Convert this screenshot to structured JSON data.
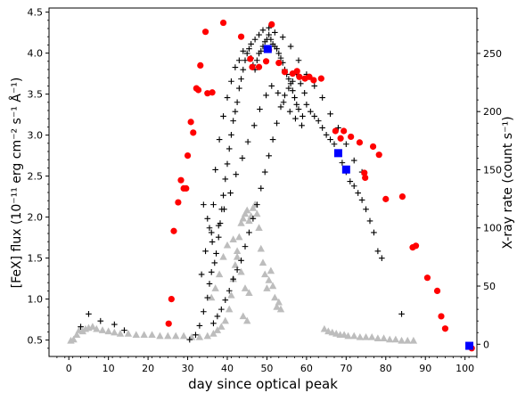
{
  "chart_data": {
    "type": "scatter",
    "title": "",
    "xlabel": "day since optical peak",
    "ylabel_left": "[FeX] flux (10⁻¹¹ erg cm⁻² s⁻¹ Å⁻¹)",
    "ylabel_right": "X-ray rate (count s⁻¹)",
    "xlim": [
      -5,
      103
    ],
    "ylim_left": [
      0.3,
      4.55
    ],
    "ylim_right": [
      -10.5,
      289
    ],
    "xticks": [
      0,
      10,
      20,
      30,
      40,
      50,
      60,
      70,
      80,
      90,
      100
    ],
    "yticks_left": [
      0.5,
      1.0,
      1.5,
      2.0,
      2.5,
      3.0,
      3.5,
      4.0,
      4.5
    ],
    "yticks_right": [
      0,
      50,
      100,
      150,
      200,
      250
    ],
    "colors": {
      "red_circles": "#ff0000",
      "blue_squares": "#0000ff",
      "gray_triangles": "#bdbdbd",
      "black_plus": "#000000"
    },
    "series": [
      {
        "marker": "circle",
        "axis": "left",
        "points": [
          [
            25.2,
            0.7
          ],
          [
            25.9,
            1.0
          ],
          [
            26.5,
            1.83
          ],
          [
            27.6,
            2.18
          ],
          [
            28.3,
            2.45
          ],
          [
            29.0,
            2.35
          ],
          [
            29.6,
            2.35
          ],
          [
            30.0,
            2.75
          ],
          [
            30.8,
            3.16
          ],
          [
            31.4,
            3.03
          ],
          [
            32.2,
            3.57
          ],
          [
            32.7,
            3.55
          ],
          [
            33.2,
            3.85
          ],
          [
            34.5,
            4.26
          ],
          [
            35.0,
            3.51
          ],
          [
            36.2,
            3.52
          ],
          [
            39.0,
            4.37
          ],
          [
            43.5,
            4.2
          ],
          [
            45.8,
            3.93
          ],
          [
            46.3,
            3.83
          ],
          [
            48.0,
            3.83
          ],
          [
            49.8,
            3.9
          ],
          [
            50.5,
            4.04
          ],
          [
            51.2,
            4.35
          ],
          [
            53.0,
            3.88
          ],
          [
            54.5,
            3.77
          ],
          [
            56.5,
            3.75
          ],
          [
            57.6,
            3.78
          ],
          [
            58.2,
            3.71
          ],
          [
            59.6,
            3.69
          ],
          [
            60.7,
            3.71
          ],
          [
            61.8,
            3.67
          ],
          [
            63.7,
            3.69
          ],
          [
            67.3,
            3.05
          ],
          [
            68.6,
            2.96
          ],
          [
            69.4,
            3.05
          ],
          [
            71.2,
            2.98
          ],
          [
            73.4,
            2.91
          ],
          [
            74.6,
            2.54
          ],
          [
            74.8,
            2.48
          ],
          [
            76.8,
            2.86
          ],
          [
            78.3,
            2.76
          ],
          [
            80.0,
            2.22
          ],
          [
            84.2,
            2.25
          ],
          [
            86.8,
            1.63
          ],
          [
            87.6,
            1.65
          ],
          [
            90.5,
            1.26
          ],
          [
            93.0,
            1.1
          ],
          [
            94.0,
            0.79
          ],
          [
            95.0,
            0.64
          ],
          [
            101.7,
            0.4
          ]
        ]
      },
      {
        "marker": "square",
        "axis": "left",
        "points": [
          [
            50.2,
            4.05
          ],
          [
            68.0,
            2.78
          ],
          [
            70.0,
            2.58
          ],
          [
            101.1,
            0.43
          ]
        ]
      },
      {
        "marker": "triangle",
        "axis": "right",
        "points": [
          [
            0.5,
            3
          ],
          [
            1.2,
            4
          ],
          [
            2.0,
            8
          ],
          [
            2.6,
            12
          ],
          [
            3.5,
            11
          ],
          [
            4.2,
            13
          ],
          [
            5.0,
            14
          ],
          [
            6.0,
            15
          ],
          [
            7.0,
            13
          ],
          [
            8.5,
            12
          ],
          [
            10.0,
            11
          ],
          [
            11.5,
            10
          ],
          [
            13.0,
            9
          ],
          [
            15.0,
            9
          ],
          [
            17.0,
            8
          ],
          [
            19.0,
            8
          ],
          [
            21.0,
            8
          ],
          [
            23.0,
            7
          ],
          [
            25.0,
            7
          ],
          [
            27.0,
            7
          ],
          [
            29.0,
            7
          ],
          [
            31.0,
            6
          ],
          [
            33.0,
            6
          ],
          [
            35.0,
            7
          ],
          [
            36.5,
            9
          ],
          [
            37.5,
            12
          ],
          [
            38.5,
            15
          ],
          [
            39.5,
            20
          ],
          [
            40.5,
            30
          ],
          [
            41.0,
            42
          ],
          [
            41.5,
            56
          ],
          [
            42.0,
            68
          ],
          [
            42.5,
            80
          ],
          [
            43.0,
            92
          ],
          [
            43.5,
            104
          ],
          [
            44.0,
            108
          ],
          [
            44.5,
            112
          ],
          [
            45.0,
            115
          ],
          [
            45.5,
            106
          ],
          [
            46.0,
            110
          ],
          [
            46.5,
            117
          ],
          [
            47.0,
            120
          ],
          [
            47.5,
            112
          ],
          [
            48.0,
            100
          ],
          [
            48.5,
            82
          ],
          [
            49.0,
            70
          ],
          [
            49.5,
            60
          ],
          [
            50.0,
            48
          ],
          [
            50.5,
            55
          ],
          [
            51.0,
            63
          ],
          [
            51.5,
            50
          ],
          [
            52.0,
            40
          ],
          [
            52.5,
            32
          ],
          [
            53.0,
            36
          ],
          [
            53.5,
            30
          ],
          [
            38.0,
            60
          ],
          [
            39.0,
            75
          ],
          [
            40.0,
            85
          ],
          [
            41.5,
            90
          ],
          [
            42.5,
            75
          ],
          [
            43.5,
            62
          ],
          [
            44.5,
            48
          ],
          [
            45.5,
            44
          ],
          [
            44.0,
            24
          ],
          [
            45.0,
            20
          ],
          [
            36.0,
            40
          ],
          [
            37.0,
            48
          ],
          [
            64.5,
            13
          ],
          [
            65.5,
            11
          ],
          [
            66.5,
            10
          ],
          [
            67.5,
            9
          ],
          [
            68.5,
            8
          ],
          [
            69.5,
            8
          ],
          [
            70.5,
            7
          ],
          [
            72.0,
            7
          ],
          [
            73.5,
            6
          ],
          [
            75.0,
            6
          ],
          [
            76.5,
            6
          ],
          [
            78.0,
            5
          ],
          [
            79.5,
            5
          ],
          [
            81.0,
            4
          ],
          [
            82.5,
            4
          ],
          [
            84.0,
            3
          ],
          [
            85.5,
            3
          ],
          [
            87.0,
            3
          ]
        ]
      },
      {
        "marker": "plus",
        "axis": "right",
        "points": [
          [
            3.0,
            15
          ],
          [
            5.0,
            26
          ],
          [
            8.0,
            20
          ],
          [
            11.5,
            17
          ],
          [
            14.0,
            12
          ],
          [
            30.5,
            4
          ],
          [
            32.0,
            8
          ],
          [
            33.0,
            16
          ],
          [
            34.0,
            28
          ],
          [
            35.0,
            40
          ],
          [
            35.5,
            52
          ],
          [
            36.0,
            62
          ],
          [
            36.8,
            70
          ],
          [
            37.2,
            78
          ],
          [
            37.8,
            92
          ],
          [
            38.2,
            104
          ],
          [
            38.6,
            116
          ],
          [
            39.0,
            128
          ],
          [
            39.5,
            142
          ],
          [
            40.0,
            155
          ],
          [
            40.5,
            168
          ],
          [
            41.0,
            180
          ],
          [
            41.5,
            192
          ],
          [
            42.0,
            200
          ],
          [
            42.5,
            208
          ],
          [
            43.0,
            220
          ],
          [
            43.5,
            228
          ],
          [
            44.0,
            236
          ],
          [
            44.5,
            244
          ],
          [
            45.0,
            250
          ],
          [
            45.5,
            254
          ],
          [
            46.0,
            246
          ],
          [
            46.5,
            240
          ],
          [
            47.0,
            236
          ],
          [
            47.5,
            244
          ],
          [
            48.0,
            250
          ],
          [
            48.5,
            252
          ],
          [
            49.0,
            256
          ],
          [
            49.5,
            260
          ],
          [
            50.0,
            262
          ],
          [
            50.5,
            266
          ],
          [
            51.0,
            262
          ],
          [
            51.5,
            258
          ],
          [
            52.0,
            256
          ],
          [
            52.5,
            254
          ],
          [
            53.0,
            250
          ],
          [
            53.5,
            246
          ],
          [
            54.0,
            242
          ],
          [
            54.5,
            236
          ],
          [
            55.0,
            232
          ],
          [
            55.5,
            228
          ],
          [
            56.0,
            224
          ],
          [
            56.5,
            218
          ],
          [
            57.0,
            212
          ],
          [
            57.5,
            206
          ],
          [
            58.0,
            202
          ],
          [
            59.0,
            196
          ],
          [
            60.0,
            206
          ],
          [
            61.0,
            200
          ],
          [
            62.0,
            196
          ],
          [
            63.0,
            192
          ],
          [
            64.0,
            186
          ],
          [
            65.0,
            180
          ],
          [
            66.0,
            176
          ],
          [
            67.0,
            172
          ],
          [
            68.0,
            164
          ],
          [
            69.0,
            156
          ],
          [
            70.0,
            148
          ],
          [
            71.0,
            140
          ],
          [
            72.0,
            136
          ],
          [
            73.0,
            130
          ],
          [
            74.0,
            124
          ],
          [
            75.0,
            116
          ],
          [
            76.0,
            106
          ],
          [
            77.0,
            96
          ],
          [
            78.0,
            80
          ],
          [
            79.0,
            74
          ],
          [
            84.0,
            26
          ],
          [
            36.5,
            18
          ],
          [
            37.5,
            24
          ],
          [
            38.5,
            30
          ],
          [
            39.5,
            38
          ],
          [
            40.5,
            46
          ],
          [
            41.5,
            56
          ],
          [
            42.5,
            64
          ],
          [
            43.5,
            72
          ],
          [
            44.5,
            84
          ],
          [
            45.5,
            96
          ],
          [
            46.5,
            108
          ],
          [
            47.5,
            120
          ],
          [
            48.5,
            134
          ],
          [
            49.5,
            148
          ],
          [
            50.5,
            162
          ],
          [
            51.5,
            176
          ],
          [
            52.5,
            190
          ],
          [
            53.5,
            204
          ],
          [
            54.5,
            214
          ],
          [
            55.5,
            220
          ],
          [
            56.5,
            226
          ],
          [
            57.5,
            232
          ],
          [
            58.5,
            224
          ],
          [
            59.5,
            216
          ],
          [
            34.0,
            120
          ],
          [
            35.0,
            108
          ],
          [
            36.0,
            96
          ],
          [
            37.0,
            150
          ],
          [
            38.0,
            176
          ],
          [
            39.0,
            196
          ],
          [
            40.0,
            212
          ],
          [
            41.0,
            226
          ],
          [
            42.0,
            238
          ],
          [
            43.0,
            244
          ],
          [
            44.0,
            252
          ],
          [
            46.0,
            258
          ],
          [
            47.0,
            262
          ],
          [
            48.0,
            266
          ],
          [
            49.0,
            270
          ],
          [
            50.5,
            272
          ],
          [
            52.0,
            268
          ],
          [
            54.0,
            264
          ],
          [
            56.0,
            256
          ],
          [
            58.0,
            244
          ],
          [
            60.0,
            232
          ],
          [
            62.0,
            222
          ],
          [
            64.0,
            212
          ],
          [
            66.0,
            198
          ],
          [
            68.0,
            186
          ],
          [
            70.0,
            172
          ],
          [
            72.0,
            158
          ],
          [
            74.0,
            148
          ],
          [
            36.2,
            88
          ],
          [
            37.8,
            102
          ],
          [
            39.2,
            116
          ],
          [
            40.8,
            130
          ],
          [
            42.2,
            146
          ],
          [
            43.8,
            160
          ],
          [
            45.2,
            174
          ],
          [
            46.8,
            188
          ],
          [
            48.2,
            202
          ],
          [
            49.8,
            214
          ],
          [
            51.2,
            222
          ],
          [
            52.8,
            216
          ],
          [
            54.2,
            208
          ],
          [
            55.8,
            200
          ],
          [
            57.2,
            194
          ],
          [
            58.8,
            188
          ],
          [
            33.5,
            60
          ],
          [
            34.5,
            80
          ],
          [
            35.5,
            100
          ],
          [
            36.5,
            120
          ]
        ]
      }
    ]
  }
}
